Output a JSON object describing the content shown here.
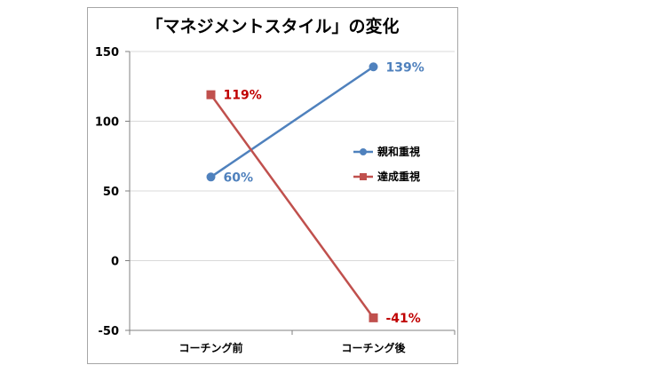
{
  "chart_data": {
    "type": "line",
    "title": "「マネジメントスタイル」の変化",
    "categories": [
      "コーチング前",
      "コーチング後"
    ],
    "ylim": [
      -50,
      150
    ],
    "yticks": [
      -50,
      0,
      50,
      100,
      150
    ],
    "grid": true,
    "legend_position": "right",
    "series": [
      {
        "name": "親和重視",
        "values": [
          60,
          139
        ],
        "labels": [
          "60%",
          "139%"
        ],
        "color": "#4f81bd",
        "marker": "circle"
      },
      {
        "name": "達成重視",
        "values": [
          119,
          -41
        ],
        "labels": [
          "119%",
          "-41%"
        ],
        "color": "#c0504d",
        "marker": "square",
        "label_color": "#c00000"
      }
    ]
  }
}
